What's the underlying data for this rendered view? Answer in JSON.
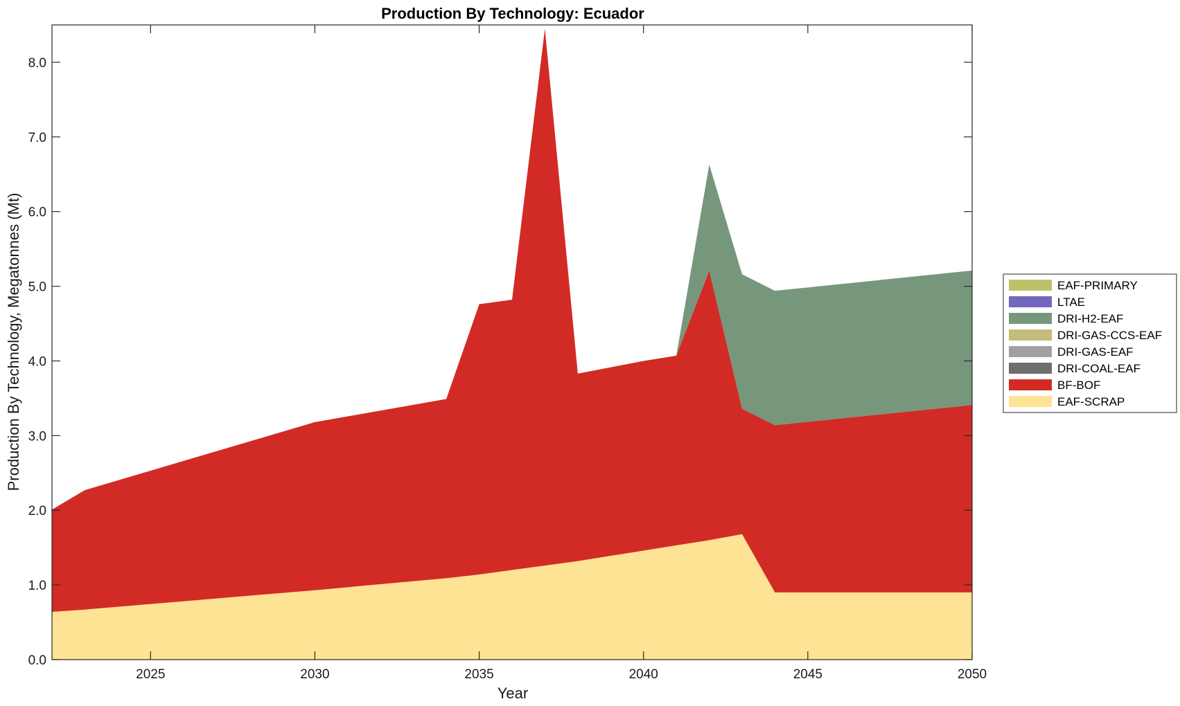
{
  "chart_data": {
    "type": "area",
    "stacked": true,
    "title": "Production By Technology: Ecuador",
    "xlabel": "Year",
    "ylabel": "Production By Technology, Megatonnes (Mt)",
    "xlim": [
      2022,
      2050
    ],
    "ylim": [
      0,
      8.5
    ],
    "xticks": [
      2025,
      2030,
      2035,
      2040,
      2045,
      2050
    ],
    "xtick_labels": [
      "2025",
      "2030",
      "2035",
      "2040",
      "2045",
      "2050"
    ],
    "yticks": [
      0,
      1,
      2,
      3,
      4,
      5,
      6,
      7,
      8
    ],
    "ytick_labels": [
      "0.0",
      "1.0",
      "2.0",
      "3.0",
      "4.0",
      "5.0",
      "6.0",
      "7.0",
      "8.0"
    ],
    "grid": false,
    "legend_position": "right",
    "x": [
      2022,
      2023,
      2030,
      2034,
      2035,
      2036,
      2037,
      2038,
      2040,
      2041,
      2042,
      2043,
      2044,
      2050
    ],
    "series": [
      {
        "name": "EAF-SCRAP",
        "color": "#fde393",
        "values": [
          0.64,
          0.67,
          0.93,
          1.09,
          1.14,
          1.2,
          1.26,
          1.32,
          1.46,
          1.53,
          1.6,
          1.68,
          0.9,
          0.9
        ]
      },
      {
        "name": "BF-BOF",
        "color": "#d22b25",
        "values": [
          1.37,
          1.6,
          2.25,
          2.4,
          3.62,
          3.62,
          7.19,
          2.51,
          2.54,
          2.54,
          3.61,
          1.68,
          2.24,
          2.51
        ]
      },
      {
        "name": "DRI-COAL-EAF",
        "color": "#6e6e6e",
        "values": [
          0,
          0,
          0,
          0,
          0,
          0,
          0,
          0,
          0,
          0,
          0,
          0,
          0,
          0
        ]
      },
      {
        "name": "DRI-GAS-EAF",
        "color": "#a0a0a0",
        "values": [
          0,
          0,
          0,
          0,
          0,
          0,
          0,
          0,
          0,
          0,
          0,
          0,
          0,
          0
        ]
      },
      {
        "name": "DRI-GAS-CCS-EAF",
        "color": "#c4bb7d",
        "values": [
          0,
          0,
          0,
          0,
          0,
          0,
          0,
          0,
          0,
          0,
          0,
          0,
          0,
          0
        ]
      },
      {
        "name": "DRI-H2-EAF",
        "color": "#76977c",
        "values": [
          0,
          0,
          0,
          0,
          0,
          0,
          0,
          0,
          0,
          0,
          1.42,
          1.8,
          1.8,
          1.8
        ]
      },
      {
        "name": "LTAE",
        "color": "#7366bd",
        "values": [
          0,
          0,
          0,
          0,
          0,
          0,
          0,
          0,
          0,
          0,
          0,
          0,
          0,
          0
        ]
      },
      {
        "name": "EAF-PRIMARY",
        "color": "#bcc269",
        "values": [
          0,
          0,
          0,
          0,
          0,
          0,
          0,
          0,
          0,
          0,
          0,
          0,
          0,
          0
        ]
      }
    ],
    "legend_order": [
      "EAF-PRIMARY",
      "LTAE",
      "DRI-H2-EAF",
      "DRI-GAS-CCS-EAF",
      "DRI-GAS-EAF",
      "DRI-COAL-EAF",
      "BF-BOF",
      "EAF-SCRAP"
    ]
  }
}
